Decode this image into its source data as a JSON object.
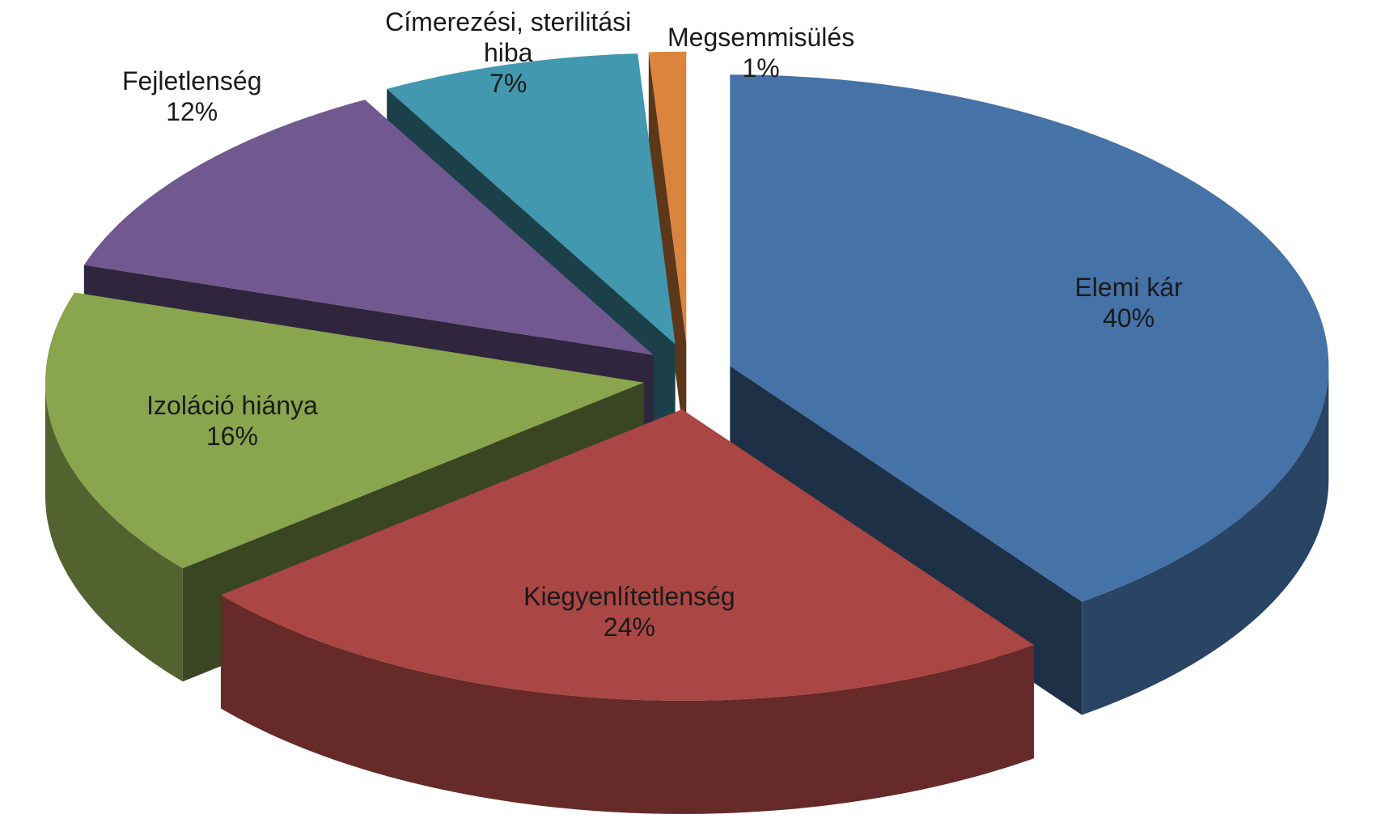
{
  "chart_data": {
    "type": "pie3d",
    "categories": [
      "Elemi kár",
      "Kiegyenlítetlenség",
      "Izoláció hiánya",
      "Fejletlenség",
      "Címerezési, sterilitási hiba",
      "Megsemmisülés"
    ],
    "values": [
      40,
      24,
      16,
      12,
      7,
      1
    ],
    "value_labels": [
      "40%",
      "24%",
      "16%",
      "12%",
      "7%",
      "1%"
    ],
    "colors": [
      "#4572a7",
      "#aa4643",
      "#89a54e",
      "#71588f",
      "#4198af",
      "#db843d"
    ]
  }
}
